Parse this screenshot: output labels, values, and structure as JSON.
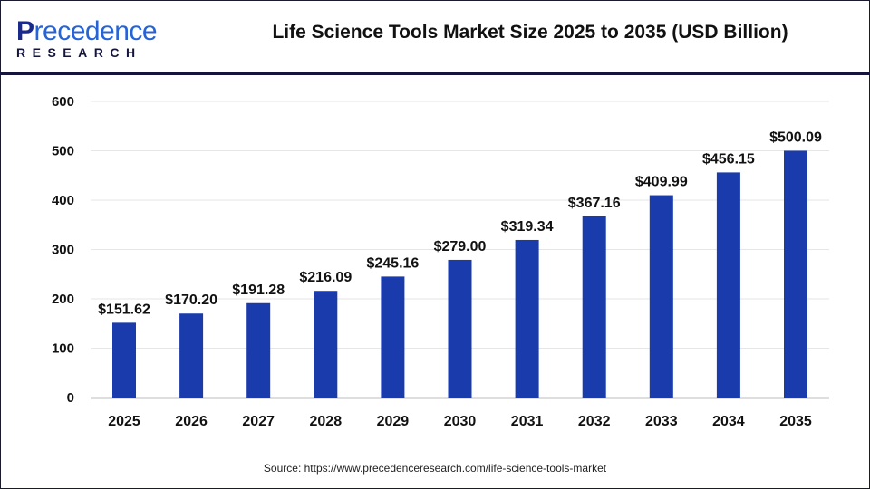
{
  "header": {
    "logo_text_main": "Precedence",
    "logo_text_sub": "RESEARCH",
    "title": "Life Science Tools Market Size 2025 to 2035 (USD Billion)"
  },
  "source": "Source: https://www.precedenceresearch.com/life-science-tools-market",
  "colors": {
    "bar": "#1a3bab",
    "header_rule": "#14143c",
    "grid": "#e6e6e6",
    "axis": "#bdbdbd"
  },
  "chart_data": {
    "type": "bar",
    "title": "Life Science Tools Market Size 2025 to 2035 (USD Billion)",
    "categories": [
      "2025",
      "2026",
      "2027",
      "2028",
      "2029",
      "2030",
      "2031",
      "2032",
      "2033",
      "2034",
      "2035"
    ],
    "values": [
      151.62,
      170.2,
      191.28,
      216.09,
      245.16,
      279.0,
      319.34,
      367.16,
      409.99,
      456.15,
      500.09
    ],
    "data_labels": [
      "$151.62",
      "$170.20",
      "$191.28",
      "$216.09",
      "$245.16",
      "$279.00",
      "$319.34",
      "$367.16",
      "$409.99",
      "$456.15",
      "$500.09"
    ],
    "yticks": [
      0,
      100,
      200,
      300,
      400,
      500,
      600
    ],
    "ylim": [
      0,
      600
    ],
    "xlabel": "",
    "ylabel": "",
    "grid": true,
    "legend": "none"
  }
}
